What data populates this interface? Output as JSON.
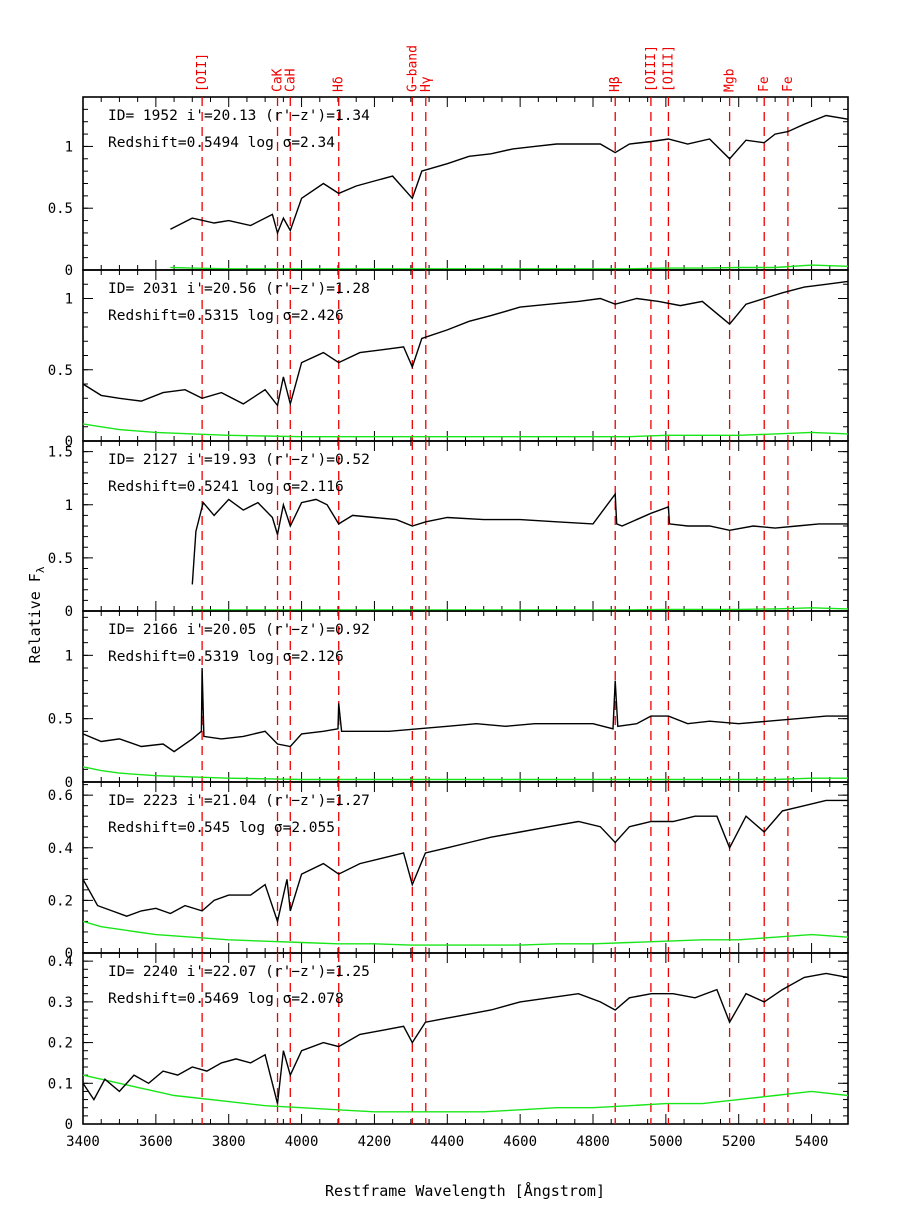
{
  "chart_data": {
    "type": "line",
    "xlabel": "Restframe Wavelength [Ångstrom]",
    "ylabel": "Relative F",
    "ylabel_sub": "λ",
    "xlim": [
      3400,
      5500
    ],
    "x_ticks": [
      "3400",
      "3600",
      "3800",
      "4000",
      "4200",
      "4400",
      "4600",
      "4800",
      "5000",
      "5200",
      "5400"
    ],
    "spectral_lines": [
      {
        "label": "[OII]",
        "wavelength": 3727
      },
      {
        "label": "CaK",
        "wavelength": 3934
      },
      {
        "label": "CaH",
        "wavelength": 3969
      },
      {
        "label": "Hδ",
        "wavelength": 4102
      },
      {
        "label": "G−band",
        "wavelength": 4304
      },
      {
        "label": "Hγ",
        "wavelength": 4341
      },
      {
        "label": "Hβ",
        "wavelength": 4861
      },
      {
        "label": "[OIII]",
        "wavelength": 4959
      },
      {
        "label": "[OIII]",
        "wavelength": 5007
      },
      {
        "label": "Mgb",
        "wavelength": 5175
      },
      {
        "label": "Fe",
        "wavelength": 5270
      },
      {
        "label": "Fe",
        "wavelength": 5335
      }
    ],
    "panels": [
      {
        "info1": "ID=  1952   i'=20.13  (r'−z')=1.34",
        "info2": "Redshift=0.5494   log  σ=2.34",
        "ylim": [
          0,
          1.4
        ],
        "y_ticks": [
          "0",
          "0.5",
          "1"
        ],
        "spectrum": {
          "x": [
            3640,
            3700,
            3760,
            3800,
            3860,
            3920,
            3934,
            3950,
            3969,
            4000,
            4060,
            4102,
            4150,
            4200,
            4250,
            4304,
            4330,
            4400,
            4460,
            4520,
            4580,
            4640,
            4700,
            4760,
            4820,
            4861,
            4900,
            4960,
            5007,
            5060,
            5120,
            5175,
            5220,
            5270,
            5300,
            5335,
            5380,
            5440,
            5500
          ],
          "y": [
            0.33,
            0.42,
            0.38,
            0.4,
            0.36,
            0.45,
            0.3,
            0.42,
            0.32,
            0.58,
            0.7,
            0.62,
            0.68,
            0.72,
            0.76,
            0.58,
            0.8,
            0.86,
            0.92,
            0.94,
            0.98,
            1.0,
            1.02,
            1.02,
            1.02,
            0.95,
            1.02,
            1.04,
            1.06,
            1.02,
            1.06,
            0.9,
            1.05,
            1.03,
            1.1,
            1.12,
            1.18,
            1.25,
            1.22
          ]
        },
        "error": {
          "x": [
            3640,
            3700,
            3800,
            3900,
            4000,
            4100,
            4200,
            4300,
            4400,
            4500,
            4600,
            4700,
            4800,
            4900,
            5000,
            5100,
            5200,
            5300,
            5400,
            5500
          ],
          "y": [
            0.02,
            0.015,
            0.01,
            0.01,
            0.01,
            0.01,
            0.01,
            0.01,
            0.01,
            0.01,
            0.01,
            0.01,
            0.01,
            0.01,
            0.015,
            0.015,
            0.02,
            0.02,
            0.04,
            0.03
          ]
        }
      },
      {
        "info1": "ID=  2031   i'=20.56  (r'−z')=1.28",
        "info2": "Redshift=0.5315   log  σ=2.426",
        "ylim": [
          0,
          1.2
        ],
        "y_ticks": [
          "0",
          "0.5",
          "1"
        ],
        "spectrum": {
          "x": [
            3400,
            3450,
            3500,
            3560,
            3620,
            3680,
            3727,
            3780,
            3840,
            3900,
            3934,
            3950,
            3969,
            4000,
            4060,
            4102,
            4160,
            4220,
            4280,
            4304,
            4330,
            4400,
            4460,
            4520,
            4600,
            4680,
            4760,
            4820,
            4861,
            4920,
            4980,
            5040,
            5100,
            5175,
            5220,
            5270,
            5320,
            5380,
            5440,
            5500
          ],
          "y": [
            0.4,
            0.32,
            0.3,
            0.28,
            0.34,
            0.36,
            0.3,
            0.34,
            0.26,
            0.36,
            0.25,
            0.45,
            0.26,
            0.55,
            0.62,
            0.55,
            0.62,
            0.64,
            0.66,
            0.52,
            0.72,
            0.78,
            0.84,
            0.88,
            0.94,
            0.96,
            0.98,
            1.0,
            0.96,
            1.0,
            0.98,
            0.95,
            0.98,
            0.82,
            0.96,
            1.0,
            1.04,
            1.08,
            1.1,
            1.12
          ]
        },
        "error": {
          "x": [
            3400,
            3450,
            3500,
            3600,
            3700,
            3800,
            3900,
            4000,
            4100,
            4200,
            4300,
            4400,
            4500,
            4600,
            4700,
            4800,
            4900,
            5000,
            5100,
            5200,
            5300,
            5400,
            5500
          ],
          "y": [
            0.12,
            0.1,
            0.08,
            0.06,
            0.05,
            0.04,
            0.035,
            0.03,
            0.03,
            0.03,
            0.03,
            0.03,
            0.03,
            0.03,
            0.03,
            0.03,
            0.03,
            0.04,
            0.04,
            0.04,
            0.05,
            0.06,
            0.05
          ]
        }
      },
      {
        "info1": "ID=  2127   i'=19.93  (r'−z')=0.52",
        "info2": "Redshift=0.5241   log  σ=2.116",
        "ylim": [
          0,
          1.6
        ],
        "y_ticks": [
          "0",
          "0.5",
          "1",
          "1.5"
        ],
        "spectrum": {
          "x": [
            3700,
            3710,
            3730,
            3760,
            3800,
            3840,
            3880,
            3920,
            3934,
            3950,
            3969,
            4000,
            4040,
            4070,
            4102,
            4140,
            4200,
            4260,
            4304,
            4341,
            4400,
            4500,
            4600,
            4700,
            4800,
            4861,
            4865,
            4880,
            4959,
            5007,
            5010,
            5060,
            5120,
            5175,
            5240,
            5300,
            5360,
            5420,
            5500
          ],
          "y": [
            0.25,
            0.75,
            1.02,
            0.9,
            1.05,
            0.95,
            1.02,
            0.88,
            0.72,
            1.0,
            0.8,
            1.02,
            1.05,
            1.0,
            0.82,
            0.9,
            0.88,
            0.86,
            0.8,
            0.84,
            0.88,
            0.86,
            0.86,
            0.84,
            0.82,
            1.1,
            0.82,
            0.8,
            0.92,
            0.98,
            0.82,
            0.8,
            0.8,
            0.76,
            0.8,
            0.78,
            0.8,
            0.82,
            0.82
          ]
        },
        "error": {
          "x": [
            3700,
            3800,
            3900,
            4000,
            4100,
            4200,
            4300,
            4400,
            4500,
            4600,
            4700,
            4800,
            4900,
            5000,
            5100,
            5200,
            5300,
            5400,
            5500
          ],
          "y": [
            0.01,
            0.01,
            0.01,
            0.01,
            0.01,
            0.01,
            0.01,
            0.01,
            0.01,
            0.01,
            0.01,
            0.01,
            0.01,
            0.015,
            0.015,
            0.015,
            0.02,
            0.03,
            0.02
          ]
        }
      },
      {
        "info1": "ID=  2166   i'=20.05  (r'−z')=0.92",
        "info2": "Redshift=0.5319   log  σ=2.126",
        "ylim": [
          0,
          1.35
        ],
        "y_ticks": [
          "0",
          "0.5",
          "1"
        ],
        "spectrum": {
          "x": [
            3400,
            3450,
            3500,
            3560,
            3620,
            3650,
            3700,
            3725,
            3727,
            3732,
            3780,
            3840,
            3900,
            3934,
            3969,
            4000,
            4060,
            4100,
            4102,
            4110,
            4160,
            4240,
            4320,
            4400,
            4480,
            4560,
            4640,
            4720,
            4800,
            4855,
            4861,
            4868,
            4920,
            4959,
            5007,
            5060,
            5120,
            5200,
            5280,
            5360,
            5440,
            5500
          ],
          "y": [
            0.38,
            0.32,
            0.34,
            0.28,
            0.3,
            0.24,
            0.34,
            0.4,
            0.9,
            0.36,
            0.34,
            0.36,
            0.4,
            0.3,
            0.28,
            0.38,
            0.4,
            0.42,
            0.62,
            0.4,
            0.4,
            0.4,
            0.42,
            0.44,
            0.46,
            0.44,
            0.46,
            0.46,
            0.46,
            0.42,
            0.8,
            0.44,
            0.46,
            0.52,
            0.52,
            0.46,
            0.48,
            0.46,
            0.48,
            0.5,
            0.52,
            0.52
          ]
        },
        "error": {
          "x": [
            3400,
            3450,
            3500,
            3600,
            3700,
            3800,
            3900,
            4000,
            4100,
            4200,
            4300,
            4400,
            4500,
            4600,
            4700,
            4800,
            4900,
            5000,
            5100,
            5200,
            5300,
            5400,
            5500
          ],
          "y": [
            0.12,
            0.09,
            0.07,
            0.05,
            0.04,
            0.03,
            0.025,
            0.02,
            0.02,
            0.02,
            0.02,
            0.02,
            0.02,
            0.02,
            0.02,
            0.02,
            0.02,
            0.02,
            0.02,
            0.02,
            0.02,
            0.03,
            0.03
          ]
        }
      },
      {
        "info1": "ID=  2223   i'=21.04  (r'−z')=1.27",
        "info2": "Redshift=0.545    log  σ=2.055",
        "ylim": [
          0,
          0.65
        ],
        "y_ticks": [
          "0",
          "0.2",
          "0.4",
          "0.6"
        ],
        "spectrum": {
          "x": [
            3400,
            3440,
            3480,
            3520,
            3560,
            3600,
            3640,
            3680,
            3727,
            3760,
            3800,
            3860,
            3900,
            3934,
            3960,
            3969,
            4000,
            4060,
            4102,
            4160,
            4220,
            4280,
            4304,
            4340,
            4400,
            4460,
            4520,
            4600,
            4680,
            4760,
            4820,
            4861,
            4900,
            4960,
            5020,
            5080,
            5140,
            5175,
            5220,
            5270,
            5320,
            5380,
            5440,
            5500
          ],
          "y": [
            0.28,
            0.18,
            0.16,
            0.14,
            0.16,
            0.17,
            0.15,
            0.18,
            0.16,
            0.2,
            0.22,
            0.22,
            0.26,
            0.12,
            0.28,
            0.16,
            0.3,
            0.34,
            0.3,
            0.34,
            0.36,
            0.38,
            0.26,
            0.38,
            0.4,
            0.42,
            0.44,
            0.46,
            0.48,
            0.5,
            0.48,
            0.42,
            0.48,
            0.5,
            0.5,
            0.52,
            0.52,
            0.4,
            0.52,
            0.46,
            0.54,
            0.56,
            0.58,
            0.58
          ]
        },
        "error": {
          "x": [
            3400,
            3450,
            3500,
            3550,
            3600,
            3700,
            3800,
            3900,
            4000,
            4100,
            4200,
            4300,
            4400,
            4500,
            4600,
            4700,
            4800,
            4900,
            5000,
            5100,
            5200,
            5300,
            5400,
            5500
          ],
          "y": [
            0.12,
            0.1,
            0.09,
            0.08,
            0.07,
            0.06,
            0.05,
            0.045,
            0.04,
            0.035,
            0.035,
            0.03,
            0.03,
            0.03,
            0.03,
            0.035,
            0.035,
            0.04,
            0.045,
            0.05,
            0.05,
            0.06,
            0.07,
            0.06
          ]
        }
      },
      {
        "info1": "ID=  2240   i'=22.07  (r'−z')=1.25",
        "info2": "Redshift=0.5469   log  σ=2.078",
        "ylim": [
          0,
          0.42
        ],
        "y_ticks": [
          "0",
          "0.1",
          "0.2",
          "0.3",
          "0.4"
        ],
        "spectrum": {
          "x": [
            3400,
            3430,
            3460,
            3500,
            3540,
            3580,
            3620,
            3660,
            3700,
            3740,
            3780,
            3820,
            3860,
            3900,
            3934,
            3950,
            3969,
            4000,
            4060,
            4102,
            4160,
            4220,
            4280,
            4304,
            4340,
            4400,
            4460,
            4520,
            4600,
            4680,
            4760,
            4820,
            4861,
            4900,
            4960,
            5020,
            5080,
            5140,
            5175,
            5220,
            5270,
            5320,
            5380,
            5440,
            5500
          ],
          "y": [
            0.1,
            0.06,
            0.11,
            0.08,
            0.12,
            0.1,
            0.13,
            0.12,
            0.14,
            0.13,
            0.15,
            0.16,
            0.15,
            0.17,
            0.05,
            0.18,
            0.12,
            0.18,
            0.2,
            0.19,
            0.22,
            0.23,
            0.24,
            0.2,
            0.25,
            0.26,
            0.27,
            0.28,
            0.3,
            0.31,
            0.32,
            0.3,
            0.28,
            0.31,
            0.32,
            0.32,
            0.31,
            0.33,
            0.25,
            0.32,
            0.3,
            0.33,
            0.36,
            0.37,
            0.36
          ]
        },
        "error": {
          "x": [
            3400,
            3450,
            3500,
            3550,
            3600,
            3650,
            3700,
            3800,
            3900,
            4000,
            4100,
            4200,
            4300,
            4400,
            4500,
            4600,
            4700,
            4800,
            4900,
            5000,
            5100,
            5200,
            5300,
            5400,
            5500
          ],
          "y": [
            0.12,
            0.11,
            0.1,
            0.09,
            0.08,
            0.07,
            0.065,
            0.055,
            0.045,
            0.04,
            0.035,
            0.03,
            0.03,
            0.03,
            0.03,
            0.035,
            0.04,
            0.04,
            0.045,
            0.05,
            0.05,
            0.06,
            0.07,
            0.08,
            0.07
          ]
        }
      }
    ]
  }
}
